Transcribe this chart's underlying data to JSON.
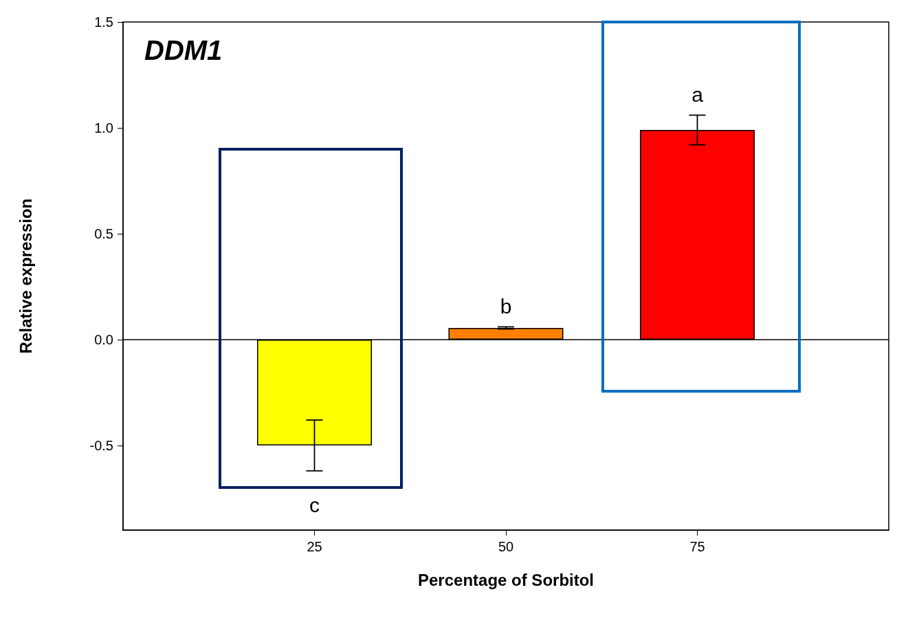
{
  "chart_data": {
    "type": "bar",
    "title": "DDM1",
    "xlabel": "Percentage of Sorbitol",
    "ylabel": "Relative expression",
    "x": [
      25,
      50,
      75
    ],
    "xlim": [
      0,
      100
    ],
    "xticks": [
      25,
      50,
      75
    ],
    "values": [
      -0.5,
      0.055,
      0.99
    ],
    "colors": [
      "#ffff00",
      "#ff8000",
      "#ff0000"
    ],
    "errors": [
      0.12,
      0.005,
      0.07
    ],
    "ylim": [
      -0.9,
      1.5
    ],
    "yticks": [
      -0.5,
      {
        "value": 0,
        "label": "0.0"
      },
      0.5,
      {
        "value": 1,
        "label": "1.0"
      },
      1.5
    ],
    "ref_lines": [
      {
        "axis": "y",
        "value": 0,
        "label": null,
        "color": "#000000"
      }
    ],
    "annotations": [
      "c",
      "b",
      "a"
    ],
    "grid": false
  }
}
